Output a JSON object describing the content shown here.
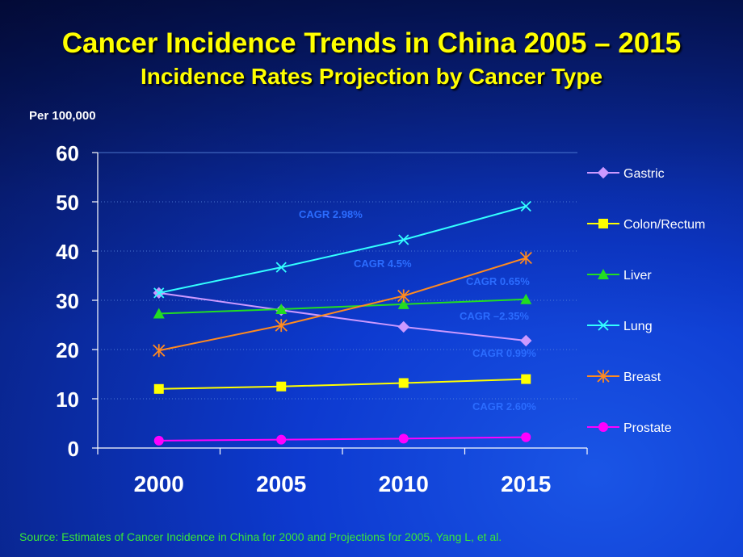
{
  "chart_data": {
    "type": "line",
    "title": "Cancer Incidence Trends in China 2005 – 2015",
    "subtitle": "Incidence Rates Projection by Cancer Type",
    "ylabel": "Per 100,000",
    "xlabel": "",
    "categories": [
      "2000",
      "2005",
      "2010",
      "2015"
    ],
    "ylim": [
      0,
      60
    ],
    "yticks": [
      "0",
      "10",
      "20",
      "30",
      "40",
      "50",
      "60"
    ],
    "series": [
      {
        "name": "Gastric",
        "color": "#cc99ff",
        "marker": "diamond",
        "values": [
          31.5,
          28.0,
          24.6,
          21.8
        ]
      },
      {
        "name": "Colon/Rectum",
        "color": "#ffff00",
        "marker": "square",
        "values": [
          12.0,
          12.5,
          13.2,
          14.0
        ]
      },
      {
        "name": "Liver",
        "color": "#22dd22",
        "marker": "triangle",
        "values": [
          27.3,
          28.2,
          29.2,
          30.2
        ]
      },
      {
        "name": "Lung",
        "color": "#33ffff",
        "marker": "x",
        "values": [
          31.5,
          36.7,
          42.3,
          49.1
        ]
      },
      {
        "name": "Breast",
        "color": "#ff8a1f",
        "marker": "star",
        "values": [
          19.8,
          24.9,
          30.9,
          38.6
        ]
      },
      {
        "name": "Prostate",
        "color": "#ff00ff",
        "marker": "circle",
        "values": [
          1.5,
          1.7,
          1.9,
          2.2
        ]
      }
    ],
    "annotations": [
      "CAGR 2.98%",
      "CAGR 4.5%",
      "CAGR 0.65%",
      "CAGR –2.35%",
      "CAGR 0.99%",
      "CAGR 2.60%"
    ],
    "legend": "right"
  },
  "source": "Source: Estimates of Cancer Incidence in China for 2000 and Projections for 2005, Yang L, et al."
}
